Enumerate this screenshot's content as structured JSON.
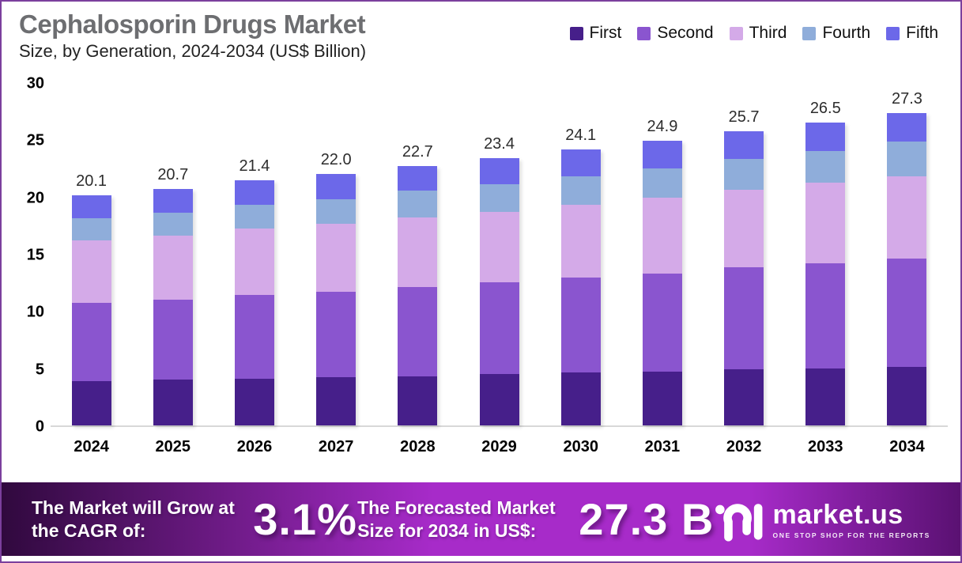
{
  "header": {
    "title": "Cephalosporin Drugs Market",
    "subtitle": "Size, by Generation, 2024-2034 (US$ Billion)",
    "title_color": "#6d6e71"
  },
  "chart_data": {
    "type": "bar",
    "stacked": true,
    "grid": false,
    "legend_position": "top-right",
    "categories": [
      "2024",
      "2025",
      "2026",
      "2027",
      "2028",
      "2029",
      "2030",
      "2031",
      "2032",
      "2033",
      "2034"
    ],
    "series": [
      {
        "name": "First",
        "color": "#461f8a",
        "values": [
          3.9,
          4.0,
          4.1,
          4.2,
          4.3,
          4.5,
          4.6,
          4.7,
          4.9,
          5.0,
          5.1
        ]
      },
      {
        "name": "Second",
        "color": "#8a55cf",
        "values": [
          6.8,
          7.0,
          7.3,
          7.5,
          7.8,
          8.0,
          8.3,
          8.6,
          8.9,
          9.2,
          9.5
        ]
      },
      {
        "name": "Third",
        "color": "#d4aae8",
        "values": [
          5.5,
          5.6,
          5.8,
          5.9,
          6.1,
          6.2,
          6.4,
          6.6,
          6.8,
          7.0,
          7.2
        ]
      },
      {
        "name": "Fourth",
        "color": "#8fadda",
        "values": [
          1.9,
          2.0,
          2.1,
          2.2,
          2.3,
          2.4,
          2.5,
          2.6,
          2.7,
          2.8,
          3.0
        ]
      },
      {
        "name": "Fifth",
        "color": "#6c68e9",
        "values": [
          2.0,
          2.1,
          2.1,
          2.2,
          2.2,
          2.3,
          2.3,
          2.4,
          2.4,
          2.5,
          2.5
        ]
      }
    ],
    "totals": [
      20.1,
      20.7,
      21.4,
      22.0,
      22.7,
      23.4,
      24.1,
      24.9,
      25.7,
      26.5,
      27.3
    ],
    "total_labels": [
      "20.1",
      "20.7",
      "21.4",
      "22.0",
      "22.7",
      "23.4",
      "24.1",
      "24.9",
      "25.7",
      "26.5",
      "27.3"
    ],
    "ylabel": "",
    "xlabel": "",
    "ylim": [
      0,
      30
    ],
    "yticks": [
      0,
      5,
      10,
      15,
      20,
      25,
      30
    ]
  },
  "banner": {
    "cagr_label": "The Market will Grow at the CAGR of:",
    "cagr_value": "3.1%",
    "forecast_label": "The Forecasted Market Size for 2034 in US$:",
    "forecast_value": "27.3 B",
    "gradient": [
      "#30093e",
      "#a72bc9",
      "#5a1172"
    ],
    "logo_text": "market.us",
    "logo_tagline": "ONE STOP SHOP FOR THE REPORTS"
  },
  "frame": {
    "border_color": "#7b3f9d",
    "axis_line_color": "#d8d8d8"
  }
}
